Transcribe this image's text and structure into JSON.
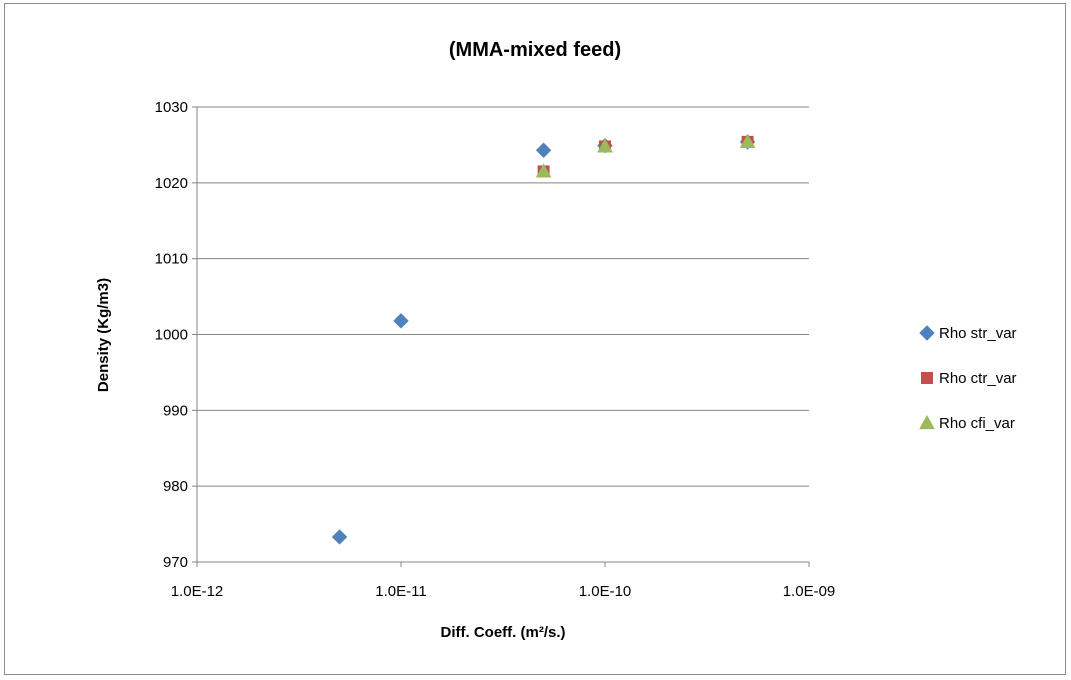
{
  "chart_data": {
    "type": "scatter",
    "title": "(MMA-mixed feed)",
    "xlabel": "Diff. Coeff. (m²/s.)",
    "ylabel": "Density (Kg/m3)",
    "xscale": "log",
    "xlim": [
      1e-12,
      1e-09
    ],
    "ylim": [
      970,
      1030
    ],
    "x_tick_values": [
      1e-12,
      1e-11,
      1e-10,
      1e-09
    ],
    "x_tick_labels": [
      "1.0E-12",
      "1.0E-11",
      "1.0E-10",
      "1.0E-09"
    ],
    "y_ticks": [
      970,
      980,
      990,
      1000,
      1010,
      1020,
      1030
    ],
    "grid": "horizontal",
    "legend_position": "right",
    "series": [
      {
        "name": "Rho str_var",
        "marker": "diamond",
        "color": "#4f81bd",
        "x": [
          5e-12,
          1e-11,
          5e-11,
          1e-10,
          5e-10
        ],
        "y": [
          973.3,
          1001.8,
          1024.3,
          1024.9,
          1025.4
        ]
      },
      {
        "name": "Rho ctr_var",
        "marker": "square",
        "color": "#c0504d",
        "x": [
          5e-11,
          1e-10,
          5e-10
        ],
        "y": [
          1021.5,
          1024.8,
          1025.4
        ]
      },
      {
        "name": "Rho cfi_var",
        "marker": "triangle",
        "color": "#9bbb59",
        "x": [
          5e-11,
          1e-10,
          5e-10
        ],
        "y": [
          1021.5,
          1024.8,
          1025.4
        ]
      }
    ]
  }
}
